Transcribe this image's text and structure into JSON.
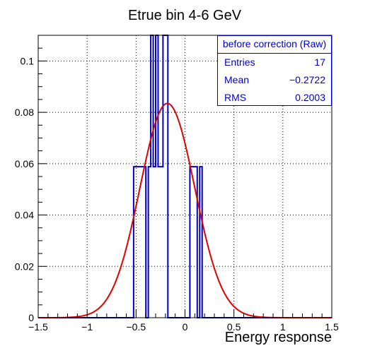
{
  "chart_data": {
    "type": "histogram",
    "title": "Etrue bin 4-6 GeV",
    "xlabel": "Energy response",
    "ylabel": "",
    "xlim": [
      -1.5,
      1.5
    ],
    "ylim": [
      0,
      0.11
    ],
    "x_ticks": [
      -1.5,
      -1,
      -0.5,
      0,
      0.5,
      1,
      1.5
    ],
    "x_tick_labels": [
      "−1.5",
      "−1",
      "−0.5",
      "0",
      "0.5",
      "1",
      "1.5"
    ],
    "y_ticks": [
      0,
      0.02,
      0.04,
      0.06,
      0.08,
      0.1
    ],
    "y_tick_labels": [
      "0",
      "0.02",
      "0.04",
      "0.06",
      "0.08",
      "0.1"
    ],
    "grid": true,
    "series": [
      {
        "kind": "histogram",
        "color": "#0000c8",
        "bins": [
          {
            "x0": -0.525,
            "x1": -0.4,
            "y": 0.0588
          },
          {
            "x0": -0.4,
            "x1": -0.375,
            "y": 0.0
          },
          {
            "x0": -0.375,
            "x1": -0.35,
            "y": 0.0588
          },
          {
            "x0": -0.35,
            "x1": -0.325,
            "y": 0.1176
          },
          {
            "x0": -0.325,
            "x1": -0.3,
            "y": 0.0588
          },
          {
            "x0": -0.3,
            "x1": -0.275,
            "y": 0.1176
          },
          {
            "x0": -0.275,
            "x1": -0.25,
            "y": 0.0588
          },
          {
            "x0": -0.25,
            "x1": -0.225,
            "y": 0.0588
          },
          {
            "x0": -0.225,
            "x1": -0.175,
            "y": 0.1176
          },
          {
            "x0": -0.175,
            "x1": 0.05,
            "y": 0.0
          },
          {
            "x0": 0.05,
            "x1": 0.125,
            "y": 0.0588
          },
          {
            "x0": 0.125,
            "x1": 0.15,
            "y": 0.0
          },
          {
            "x0": 0.15,
            "x1": 0.175,
            "y": 0.0588
          }
        ]
      },
      {
        "kind": "line",
        "color": "#e00000",
        "function": "gaus",
        "constant": 0.0835,
        "mean": -0.18,
        "sigma": 0.28,
        "xrange": [
          -1.5,
          1.5
        ]
      }
    ]
  },
  "stats": {
    "header": "before correction (Raw)",
    "rows": [
      {
        "label": "Entries",
        "value": "17"
      },
      {
        "label": "Mean",
        "value": "−0.2722"
      },
      {
        "label": "RMS",
        "value": "0.2003"
      }
    ]
  },
  "colors": {
    "histogram": "#0000c8",
    "fit": "#e00000",
    "frame": "#000000",
    "grid": "#000000"
  }
}
